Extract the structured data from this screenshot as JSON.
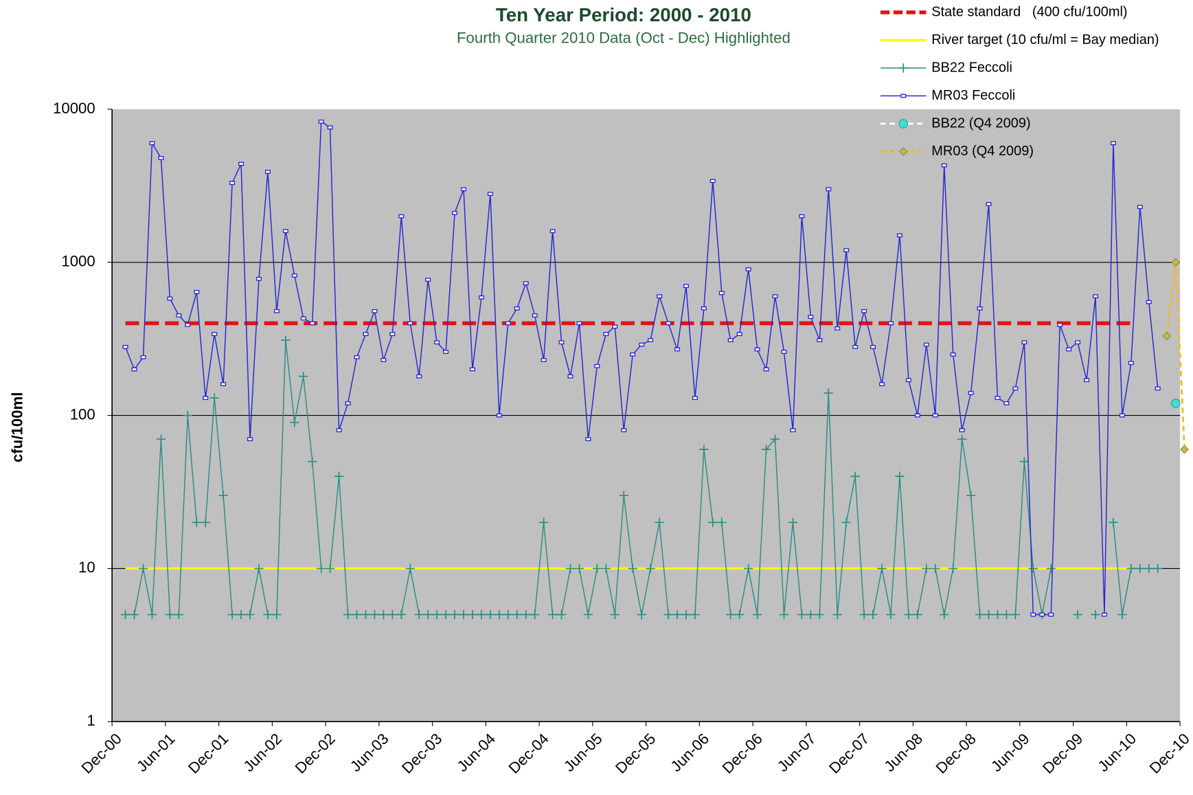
{
  "chart_data": {
    "type": "line",
    "title": "Ten Year Period:  2000 -  2010",
    "subtitle": "Fourth Quarter 2010 Data (Oct - Dec) Highlighted",
    "y_label": "cfu/100ml",
    "y_scale": "log",
    "ylim": [
      1,
      10000
    ],
    "yticks": [
      1,
      10,
      100,
      1000,
      10000
    ],
    "xlim": [
      "Dec-00",
      "Dec-10"
    ],
    "xticks": [
      "Dec-00",
      "Jun-01",
      "Dec-01",
      "Jun-02",
      "Dec-02",
      "Jun-03",
      "Dec-03",
      "Jun-04",
      "Dec-04",
      "Jun-05",
      "Dec-05",
      "Jun-06",
      "Dec-06",
      "Jun-07",
      "Dec-07",
      "Jun-08",
      "Dec-08",
      "Jun-09",
      "Dec-09",
      "Jun-10",
      "Dec-10"
    ],
    "grid": true,
    "plot_background": "#c0c0c0",
    "legend_position": "top-right",
    "x": [
      "Jan-01",
      "Feb-01",
      "Mar-01",
      "Apr-01",
      "May-01",
      "Jun-01",
      "Jul-01",
      "Aug-01",
      "Sep-01",
      "Oct-01",
      "Nov-01",
      "Dec-01",
      "Jan-02",
      "Feb-02",
      "Mar-02",
      "Apr-02",
      "May-02",
      "Jun-02",
      "Jul-02",
      "Aug-02",
      "Sep-02",
      "Oct-02",
      "Nov-02",
      "Dec-02",
      "Jan-03",
      "Feb-03",
      "Mar-03",
      "Apr-03",
      "May-03",
      "Jun-03",
      "Jul-03",
      "Aug-03",
      "Sep-03",
      "Oct-03",
      "Nov-03",
      "Dec-03",
      "Jan-04",
      "Feb-04",
      "Mar-04",
      "Apr-04",
      "May-04",
      "Jun-04",
      "Jul-04",
      "Aug-04",
      "Sep-04",
      "Oct-04",
      "Nov-04",
      "Dec-04",
      "Jan-05",
      "Feb-05",
      "Mar-05",
      "Apr-05",
      "May-05",
      "Jun-05",
      "Jul-05",
      "Aug-05",
      "Sep-05",
      "Oct-05",
      "Nov-05",
      "Dec-05",
      "Jan-06",
      "Feb-06",
      "Mar-06",
      "Apr-06",
      "May-06",
      "Jun-06",
      "Jul-06",
      "Aug-06",
      "Sep-06",
      "Oct-06",
      "Nov-06",
      "Dec-06",
      "Jan-07",
      "Feb-07",
      "Mar-07",
      "Apr-07",
      "May-07",
      "Jun-07",
      "Jul-07",
      "Aug-07",
      "Sep-07",
      "Oct-07",
      "Nov-07",
      "Dec-07",
      "Jan-08",
      "Feb-08",
      "Mar-08",
      "Apr-08",
      "May-08",
      "Jun-08",
      "Jul-08",
      "Aug-08",
      "Sep-08",
      "Oct-08",
      "Nov-08",
      "Dec-08",
      "Jan-09",
      "Feb-09",
      "Mar-09",
      "Apr-09",
      "May-09",
      "Jun-09",
      "Jul-09",
      "Aug-09",
      "Sep-09",
      "Oct-09",
      "Nov-09",
      "Dec-09",
      "Jan-10",
      "Feb-10",
      "Mar-10",
      "Apr-10",
      "May-10",
      "Jun-10",
      "Jul-10",
      "Aug-10",
      "Sep-10"
    ],
    "series": [
      {
        "name": "State standard   (400 cfu/100ml)",
        "color": "#e01414",
        "style": "dashed",
        "value": 400,
        "x_range": [
          "Jan-01",
          "Jun-10"
        ]
      },
      {
        "name": "River target (10 cfu/ml = Bay median)",
        "color": "#ffff00",
        "style": "solid",
        "value": 10,
        "x_range": [
          "Jan-01",
          "Jun-10"
        ]
      },
      {
        "name": "BB22 Feccoli",
        "color": "#2a8c84",
        "marker": "plus",
        "values": [
          5,
          5,
          10,
          5,
          70,
          5,
          5,
          100,
          20,
          20,
          130,
          30,
          5,
          5,
          5,
          10,
          5,
          5,
          310,
          90,
          180,
          50,
          10,
          10,
          40,
          5,
          5,
          5,
          5,
          5,
          5,
          5,
          10,
          5,
          5,
          5,
          5,
          5,
          5,
          5,
          5,
          5,
          5,
          5,
          5,
          5,
          5,
          20,
          5,
          5,
          10,
          10,
          5,
          10,
          10,
          5,
          30,
          10,
          5,
          10,
          20,
          5,
          5,
          5,
          5,
          60,
          20,
          20,
          5,
          5,
          10,
          5,
          60,
          70,
          5,
          20,
          5,
          5,
          5,
          140,
          5,
          20,
          40,
          5,
          5,
          10,
          5,
          40,
          5,
          5,
          10,
          10,
          5,
          10,
          70,
          30,
          5,
          5,
          5,
          5,
          5,
          50,
          10,
          5,
          10,
          null,
          null,
          5,
          null,
          5,
          null,
          20,
          5,
          10,
          10,
          10,
          10
        ]
      },
      {
        "name": "MR03 Feccoli",
        "color": "#2626d0",
        "marker": "square",
        "values": [
          280,
          200,
          240,
          6000,
          4800,
          580,
          450,
          390,
          640,
          130,
          340,
          160,
          3300,
          4400,
          70,
          780,
          3900,
          480,
          1600,
          820,
          430,
          400,
          8300,
          7600,
          80,
          120,
          240,
          340,
          480,
          230,
          340,
          2000,
          400,
          180,
          770,
          300,
          260,
          2100,
          3000,
          200,
          590,
          2800,
          100,
          400,
          500,
          730,
          450,
          230,
          1600,
          300,
          180,
          400,
          70,
          210,
          340,
          380,
          80,
          250,
          290,
          310,
          600,
          400,
          270,
          700,
          130,
          500,
          3400,
          630,
          310,
          340,
          900,
          270,
          200,
          600,
          260,
          80,
          2000,
          440,
          310,
          3000,
          370,
          1200,
          280,
          480,
          280,
          160,
          400,
          1500,
          170,
          100,
          290,
          100,
          4300,
          250,
          80,
          140,
          500,
          2400,
          130,
          120,
          150,
          300,
          5,
          5,
          5,
          390,
          270,
          300,
          170,
          600,
          5,
          6000,
          100,
          220,
          2300,
          550,
          150
        ]
      },
      {
        "name": "BB22 (Q4 2009)",
        "color": "#40e0d0",
        "line_color": "#ffffff",
        "style": "dashed",
        "marker": "circle",
        "x": [
          "Oct-10",
          "Nov-10",
          "Dec-10"
        ],
        "values": [
          null,
          120,
          null
        ]
      },
      {
        "name": "MR03 (Q4 2009)",
        "color": "#c8b850",
        "line_color": "#f5b820",
        "style": "dashed",
        "marker": "diamond",
        "x": [
          "Oct-10",
          "Nov-10",
          "Dec-10"
        ],
        "values": [
          330,
          1000,
          60
        ]
      }
    ]
  }
}
